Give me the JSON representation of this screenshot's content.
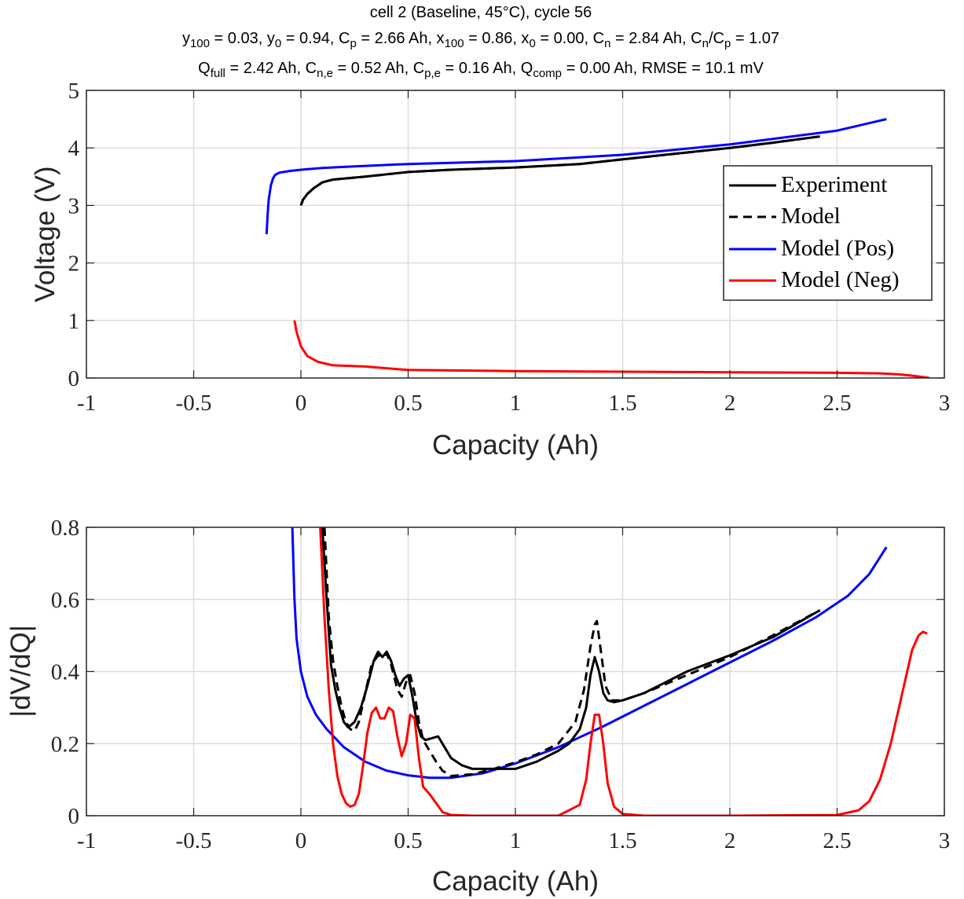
{
  "title": {
    "line1": "cell 2 (Baseline, 45°C), cycle 56",
    "line2": [
      {
        "t": "y"
      },
      {
        "t": "100",
        "sub": true
      },
      {
        "t": " = 0.03, y"
      },
      {
        "t": "0",
        "sub": true
      },
      {
        "t": " = 0.94, C"
      },
      {
        "t": "p",
        "sub": true
      },
      {
        "t": " = 2.66 Ah, x"
      },
      {
        "t": "100",
        "sub": true
      },
      {
        "t": " = 0.86, x"
      },
      {
        "t": "0",
        "sub": true
      },
      {
        "t": " = 0.00, C"
      },
      {
        "t": "n",
        "sub": true
      },
      {
        "t": " = 2.84 Ah, C"
      },
      {
        "t": "n",
        "sub": true
      },
      {
        "t": "/C"
      },
      {
        "t": "p",
        "sub": true
      },
      {
        "t": " = 1.07"
      }
    ],
    "line3": [
      {
        "t": "Q"
      },
      {
        "t": "full",
        "sub": true
      },
      {
        "t": " = 2.42 Ah, C"
      },
      {
        "t": "n,e",
        "sub": true
      },
      {
        "t": " = 0.52 Ah, C"
      },
      {
        "t": "p,e",
        "sub": true
      },
      {
        "t": " = 0.16 Ah, Q"
      },
      {
        "t": "comp",
        "sub": true
      },
      {
        "t": " = 0.00 Ah, RMSE = 10.1 mV"
      }
    ]
  },
  "colors": {
    "experiment": "#000000",
    "model": "#000000",
    "model_pos": "#0000ff",
    "model_neg": "#ff0000",
    "grid": "#dcdcdc",
    "axis": "#262626"
  },
  "chart_data": [
    {
      "type": "line",
      "panel": "voltage",
      "xlabel": "Capacity (Ah)",
      "ylabel": "Voltage (V)",
      "xlim": [
        -1,
        3
      ],
      "ylim": [
        0,
        5
      ],
      "xticks": [
        -1,
        -0.5,
        0,
        0.5,
        1,
        1.5,
        2,
        2.5,
        3
      ],
      "xtick_labels": [
        "-1",
        "-0.5",
        "0",
        "0.5",
        "1",
        "1.5",
        "2",
        "2.5",
        "3"
      ],
      "yticks": [
        0,
        1,
        2,
        3,
        4,
        5
      ],
      "ytick_labels": [
        "0",
        "1",
        "2",
        "3",
        "4",
        "5"
      ],
      "grid": true,
      "legend_position": "upper-right",
      "legend": [
        "Experiment",
        "Model",
        "Model (Pos)",
        "Model (Neg)"
      ],
      "series": [
        {
          "name": "Model (Pos)",
          "style": "solid",
          "color": "#0000ff",
          "x": [
            -0.16,
            -0.155,
            -0.15,
            -0.14,
            -0.13,
            -0.12,
            -0.1,
            -0.05,
            0,
            0.1,
            0.2,
            0.5,
            1.0,
            1.5,
            2.0,
            2.5,
            2.73
          ],
          "y": [
            2.5,
            2.85,
            3.1,
            3.35,
            3.47,
            3.53,
            3.57,
            3.6,
            3.62,
            3.65,
            3.67,
            3.72,
            3.77,
            3.88,
            4.06,
            4.3,
            4.5
          ]
        },
        {
          "name": "Experiment",
          "style": "solid",
          "color": "#000000",
          "x": [
            0,
            0.01,
            0.03,
            0.06,
            0.1,
            0.15,
            0.3,
            0.5,
            0.7,
            1.0,
            1.3,
            1.5,
            2.0,
            2.2,
            2.42
          ],
          "y": [
            3.0,
            3.1,
            3.2,
            3.3,
            3.4,
            3.45,
            3.5,
            3.58,
            3.62,
            3.66,
            3.72,
            3.8,
            4.0,
            4.09,
            4.2
          ]
        },
        {
          "name": "Model",
          "style": "dashed",
          "color": "#000000",
          "x": [
            0,
            0.01,
            0.03,
            0.06,
            0.1,
            0.15,
            0.3,
            0.5,
            0.7,
            1.0,
            1.3,
            1.5,
            2.0,
            2.2,
            2.42
          ],
          "y": [
            3.0,
            3.1,
            3.2,
            3.3,
            3.4,
            3.45,
            3.5,
            3.58,
            3.62,
            3.66,
            3.72,
            3.8,
            4.0,
            4.09,
            4.2
          ]
        },
        {
          "name": "Model (Neg)",
          "style": "solid",
          "color": "#ff0000",
          "x": [
            -0.03,
            -0.02,
            0,
            0.03,
            0.08,
            0.15,
            0.3,
            0.5,
            1.0,
            1.4,
            2.0,
            2.5,
            2.7,
            2.8,
            2.87,
            2.93
          ],
          "y": [
            1.0,
            0.8,
            0.55,
            0.38,
            0.28,
            0.22,
            0.2,
            0.14,
            0.12,
            0.11,
            0.1,
            0.09,
            0.08,
            0.06,
            0.03,
            0.0
          ]
        }
      ]
    },
    {
      "type": "line",
      "panel": "dVdQ",
      "xlabel": "Capacity (Ah)",
      "ylabel": "|dV/dQ|",
      "xlim": [
        -1,
        3
      ],
      "ylim": [
        0,
        0.8
      ],
      "xticks": [
        -1,
        -0.5,
        0,
        0.5,
        1,
        1.5,
        2,
        2.5,
        3
      ],
      "xtick_labels": [
        "-1",
        "-0.5",
        "0",
        "0.5",
        "1",
        "1.5",
        "2",
        "2.5",
        "3"
      ],
      "yticks": [
        0,
        0.2,
        0.4,
        0.6,
        0.8
      ],
      "ytick_labels": [
        "0",
        "0.2",
        "0.4",
        "0.6",
        "0.8"
      ],
      "grid": true,
      "series": [
        {
          "name": "Model (Pos)",
          "style": "solid",
          "color": "#0000ff",
          "x": [
            -0.04,
            -0.03,
            -0.02,
            0,
            0.03,
            0.07,
            0.12,
            0.2,
            0.3,
            0.4,
            0.5,
            0.6,
            0.7,
            0.85,
            1.0,
            1.2,
            1.4,
            1.6,
            1.8,
            2.0,
            2.2,
            2.4,
            2.55,
            2.65,
            2.73
          ],
          "y": [
            0.8,
            0.6,
            0.49,
            0.4,
            0.33,
            0.28,
            0.24,
            0.19,
            0.15,
            0.125,
            0.112,
            0.105,
            0.105,
            0.118,
            0.145,
            0.19,
            0.245,
            0.305,
            0.365,
            0.425,
            0.485,
            0.55,
            0.61,
            0.67,
            0.745
          ]
        },
        {
          "name": "Experiment",
          "style": "solid",
          "color": "#000000",
          "x": [
            0.1,
            0.12,
            0.14,
            0.16,
            0.18,
            0.2,
            0.22,
            0.25,
            0.28,
            0.31,
            0.34,
            0.36,
            0.38,
            0.4,
            0.42,
            0.44,
            0.46,
            0.48,
            0.5,
            0.52,
            0.54,
            0.56,
            0.58,
            0.61,
            0.64,
            0.67,
            0.7,
            0.75,
            0.8,
            0.9,
            1.0,
            1.1,
            1.2,
            1.25,
            1.3,
            1.33,
            1.35,
            1.37,
            1.39,
            1.41,
            1.43,
            1.46,
            1.5,
            1.6,
            1.7,
            1.8,
            2.0,
            2.2,
            2.42
          ],
          "y": [
            0.8,
            0.6,
            0.42,
            0.35,
            0.3,
            0.26,
            0.245,
            0.26,
            0.3,
            0.36,
            0.43,
            0.455,
            0.44,
            0.455,
            0.43,
            0.39,
            0.36,
            0.38,
            0.39,
            0.33,
            0.26,
            0.22,
            0.21,
            0.215,
            0.22,
            0.19,
            0.16,
            0.14,
            0.13,
            0.13,
            0.13,
            0.15,
            0.18,
            0.2,
            0.24,
            0.3,
            0.39,
            0.44,
            0.4,
            0.34,
            0.32,
            0.315,
            0.32,
            0.34,
            0.37,
            0.4,
            0.445,
            0.495,
            0.57
          ]
        },
        {
          "name": "Model",
          "style": "dashed",
          "color": "#000000",
          "x": [
            0.11,
            0.13,
            0.15,
            0.17,
            0.19,
            0.21,
            0.23,
            0.25,
            0.27,
            0.3,
            0.33,
            0.36,
            0.38,
            0.4,
            0.42,
            0.45,
            0.47,
            0.49,
            0.51,
            0.53,
            0.55,
            0.57,
            0.6,
            0.63,
            0.66,
            0.7,
            0.8,
            0.9,
            1.0,
            1.1,
            1.2,
            1.28,
            1.32,
            1.35,
            1.37,
            1.38,
            1.4,
            1.42,
            1.45,
            1.5,
            1.6,
            1.8,
            2.0,
            2.2,
            2.42
          ],
          "y": [
            0.8,
            0.55,
            0.43,
            0.36,
            0.3,
            0.26,
            0.24,
            0.235,
            0.26,
            0.34,
            0.42,
            0.445,
            0.44,
            0.45,
            0.42,
            0.35,
            0.33,
            0.37,
            0.39,
            0.34,
            0.26,
            0.21,
            0.18,
            0.15,
            0.125,
            0.11,
            0.115,
            0.13,
            0.148,
            0.17,
            0.2,
            0.26,
            0.35,
            0.47,
            0.53,
            0.54,
            0.45,
            0.36,
            0.32,
            0.32,
            0.34,
            0.39,
            0.44,
            0.5,
            0.57
          ]
        },
        {
          "name": "Model (Neg)",
          "style": "solid",
          "color": "#ff0000",
          "x": [
            0.09,
            0.11,
            0.13,
            0.15,
            0.17,
            0.19,
            0.21,
            0.23,
            0.25,
            0.27,
            0.29,
            0.31,
            0.33,
            0.35,
            0.37,
            0.39,
            0.41,
            0.43,
            0.45,
            0.47,
            0.49,
            0.51,
            0.53,
            0.55,
            0.57,
            0.6,
            0.63,
            0.66,
            0.7,
            0.8,
            1.0,
            1.2,
            1.3,
            1.33,
            1.35,
            1.37,
            1.39,
            1.41,
            1.43,
            1.46,
            1.5,
            1.6,
            2.0,
            2.5,
            2.6,
            2.65,
            2.7,
            2.75,
            2.8,
            2.85,
            2.88,
            2.9,
            2.92
          ],
          "y": [
            0.8,
            0.55,
            0.35,
            0.2,
            0.11,
            0.06,
            0.035,
            0.025,
            0.03,
            0.06,
            0.14,
            0.23,
            0.285,
            0.3,
            0.27,
            0.27,
            0.3,
            0.29,
            0.22,
            0.165,
            0.2,
            0.28,
            0.27,
            0.16,
            0.08,
            0.06,
            0.035,
            0.01,
            0.002,
            0.0,
            0.0,
            0.0,
            0.03,
            0.1,
            0.2,
            0.28,
            0.28,
            0.2,
            0.09,
            0.025,
            0.005,
            0.0,
            0.0,
            0.002,
            0.015,
            0.04,
            0.1,
            0.2,
            0.33,
            0.46,
            0.5,
            0.51,
            0.505
          ]
        }
      ]
    }
  ]
}
